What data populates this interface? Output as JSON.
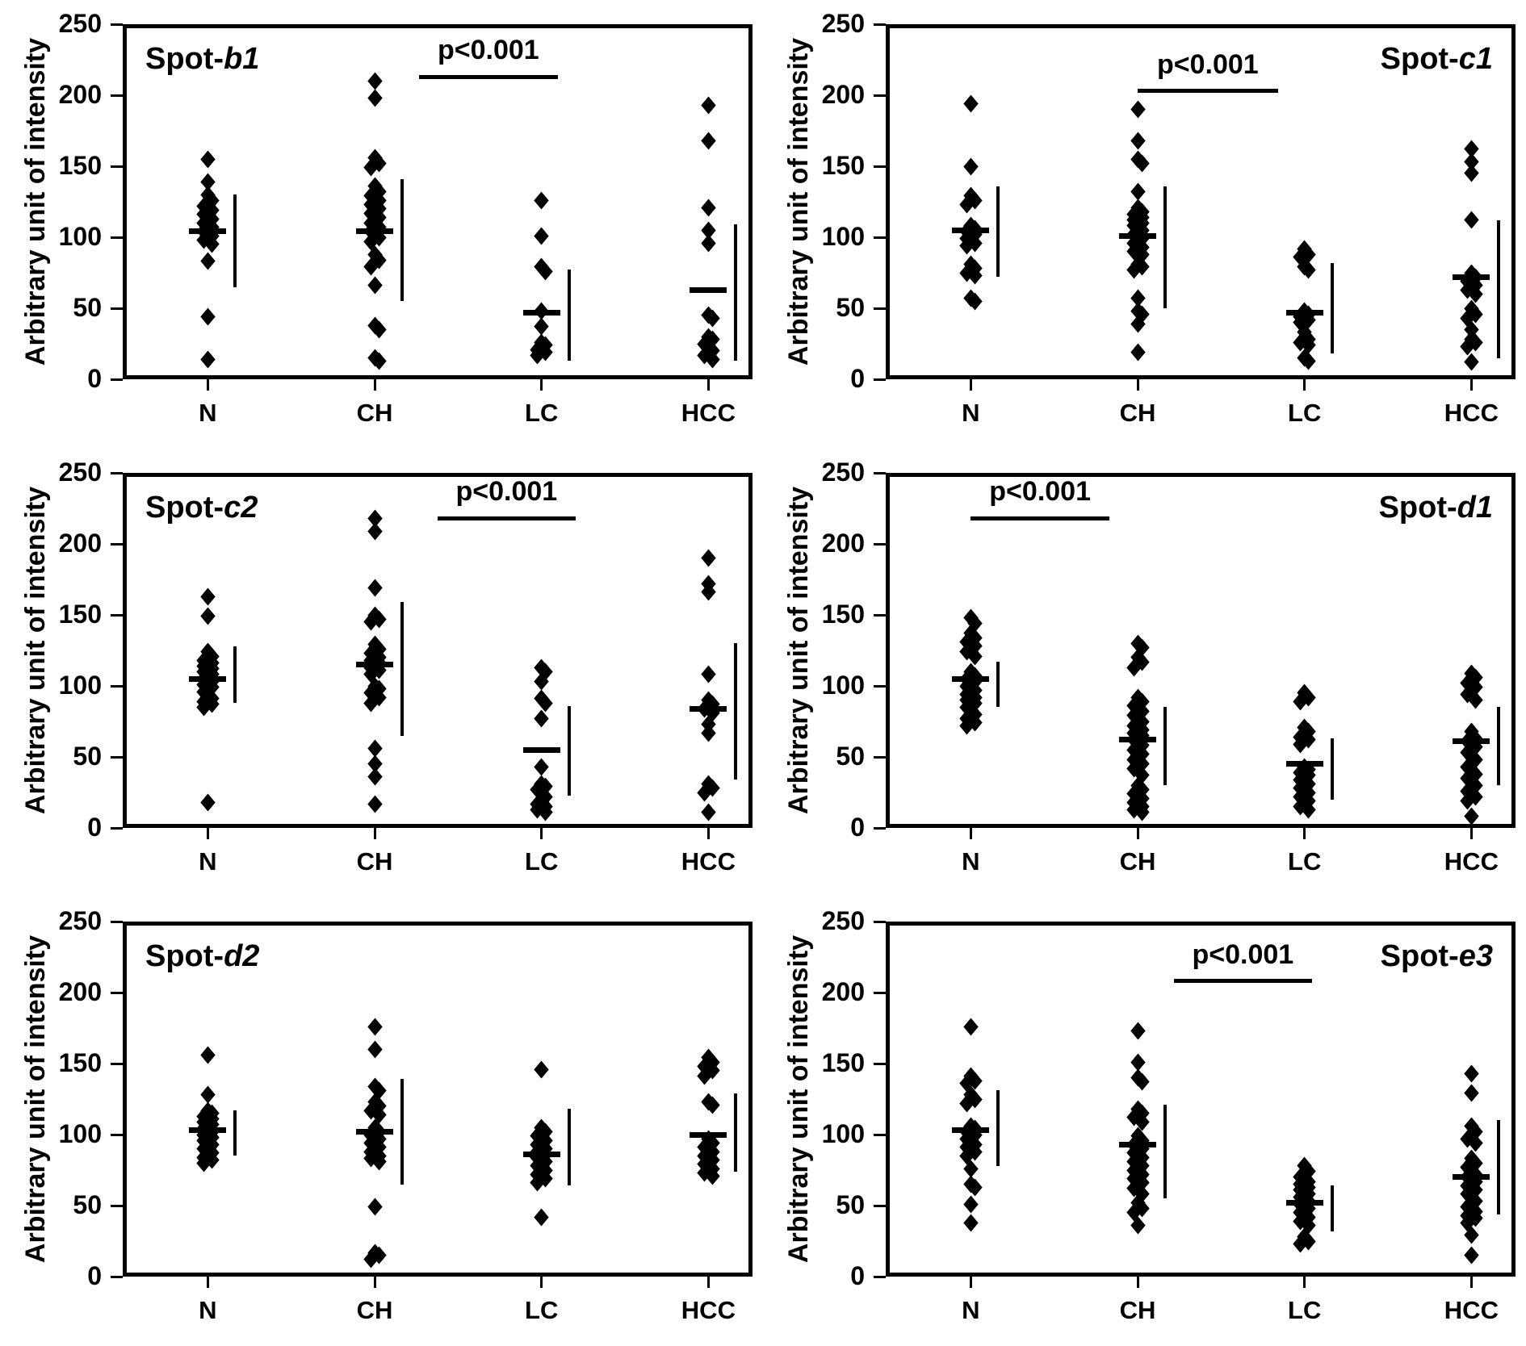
{
  "figure": {
    "background": "#ffffff",
    "marker_color": "#000000",
    "marker_shape": "diamond",
    "ylabel": "Arbitrary unit of intensity"
  },
  "chart_data": [
    {
      "type": "scatter",
      "title": {
        "prefix": "Spot-",
        "suffix": "b1",
        "position": "top-left"
      },
      "ylabel": "Arbitrary unit of intensity",
      "ylim": [
        0,
        250
      ],
      "yticks": [
        0,
        50,
        100,
        150,
        200,
        250
      ],
      "grid": false,
      "categories": [
        "N",
        "CH",
        "LC",
        "HCC"
      ],
      "series": [
        {
          "category": "N",
          "values": [
            155,
            139,
            130,
            126,
            122,
            119,
            116,
            113,
            110,
            107,
            104,
            101,
            98,
            95,
            83,
            44,
            14
          ],
          "median": 104,
          "range_line": [
            65,
            130
          ]
        },
        {
          "category": "CH",
          "values": [
            210,
            198,
            156,
            152,
            149,
            136,
            132,
            129,
            126,
            123,
            120,
            117,
            114,
            110,
            107,
            104,
            100,
            97,
            88,
            84,
            79,
            66,
            38,
            35,
            15,
            13
          ],
          "median": 104,
          "range_line": [
            55,
            141
          ]
        },
        {
          "category": "LC",
          "values": [
            126,
            101,
            79,
            76,
            48,
            37,
            26,
            24,
            21,
            19,
            17
          ],
          "median": 47,
          "range_line": [
            13,
            77
          ]
        },
        {
          "category": "HCC",
          "values": [
            193,
            168,
            121,
            105,
            96,
            45,
            43,
            30,
            28,
            25,
            20,
            17,
            14
          ],
          "median": 63,
          "range_line": [
            13,
            109
          ]
        }
      ],
      "significance": {
        "label": "p<0.001",
        "from": "CH",
        "to": "LC",
        "y": 213,
        "x_offsets": [
          55,
          20
        ]
      }
    },
    {
      "type": "scatter",
      "title": {
        "prefix": "Spot-",
        "suffix": "c1",
        "position": "top-right"
      },
      "ylabel": "Arbitrary unit of intensity",
      "ylim": [
        0,
        250
      ],
      "yticks": [
        0,
        50,
        100,
        150,
        200,
        250
      ],
      "grid": false,
      "categories": [
        "N",
        "CH",
        "LC",
        "HCC"
      ],
      "series": [
        {
          "category": "N",
          "values": [
            194,
            150,
            129,
            126,
            123,
            108,
            106,
            104,
            102,
            99,
            96,
            94,
            81,
            78,
            75,
            73,
            57,
            55
          ],
          "median": 105,
          "range_line": [
            72,
            136
          ]
        },
        {
          "category": "CH",
          "values": [
            190,
            168,
            155,
            152,
            132,
            121,
            118,
            116,
            114,
            112,
            110,
            108,
            105,
            102,
            99,
            96,
            93,
            90,
            88,
            81,
            79,
            77,
            57,
            48,
            46,
            39,
            19
          ],
          "median": 101,
          "range_line": [
            50,
            136
          ]
        },
        {
          "category": "LC",
          "values": [
            92,
            88,
            86,
            79,
            77,
            48,
            46,
            44,
            42,
            40,
            33,
            28,
            26,
            24,
            15,
            13
          ],
          "median": 47,
          "range_line": [
            18,
            82
          ]
        },
        {
          "category": "HCC",
          "values": [
            162,
            153,
            145,
            112,
            75,
            72,
            69,
            66,
            63,
            60,
            50,
            46,
            43,
            35,
            28,
            26,
            23,
            12
          ],
          "median": 72,
          "range_line": [
            15,
            112
          ]
        }
      ],
      "significance": {
        "label": "p<0.001",
        "from": "CH",
        "to": "LC",
        "y": 203,
        "x_offsets": [
          0,
          -33
        ]
      }
    },
    {
      "type": "scatter",
      "title": {
        "prefix": "Spot-",
        "suffix": "c2",
        "position": "top-left"
      },
      "ylabel": "Arbitrary unit of intensity",
      "ylim": [
        0,
        250
      ],
      "yticks": [
        0,
        50,
        100,
        150,
        200,
        250
      ],
      "grid": false,
      "categories": [
        "N",
        "CH",
        "LC",
        "HCC"
      ],
      "series": [
        {
          "category": "N",
          "values": [
            163,
            149,
            124,
            121,
            118,
            116,
            114,
            112,
            110,
            108,
            105,
            103,
            101,
            99,
            96,
            91,
            89,
            87,
            85,
            18
          ],
          "median": 105,
          "range_line": [
            88,
            128
          ]
        },
        {
          "category": "CH",
          "values": [
            218,
            209,
            169,
            150,
            147,
            145,
            129,
            126,
            123,
            120,
            118,
            116,
            113,
            111,
            108,
            100,
            98,
            95,
            92,
            88,
            56,
            45,
            36,
            17
          ],
          "median": 115,
          "range_line": [
            65,
            159
          ]
        },
        {
          "category": "LC",
          "values": [
            113,
            110,
            103,
            91,
            88,
            77,
            43,
            31,
            29,
            27,
            22,
            17,
            15,
            13,
            11
          ],
          "median": 55,
          "range_line": [
            23,
            86
          ]
        },
        {
          "category": "HCC",
          "values": [
            190,
            172,
            166,
            108,
            90,
            87,
            84,
            81,
            73,
            67,
            31,
            28,
            25,
            11
          ],
          "median": 84,
          "range_line": [
            34,
            130
          ]
        }
      ],
      "significance": {
        "label": "p<0.001",
        "from": "CH",
        "to": "LC",
        "y": 218,
        "x_offsets": [
          78,
          42
        ]
      }
    },
    {
      "type": "scatter",
      "title": {
        "prefix": "Spot-",
        "suffix": "d1",
        "position": "top-right"
      },
      "ylabel": "Arbitrary unit of intensity",
      "ylim": [
        0,
        250
      ],
      "yticks": [
        0,
        50,
        100,
        150,
        200,
        250
      ],
      "grid": false,
      "categories": [
        "N",
        "CH",
        "LC",
        "HCC"
      ],
      "series": [
        {
          "category": "N",
          "values": [
            148,
            144,
            137,
            134,
            131,
            128,
            124,
            121,
            110,
            107,
            105,
            103,
            100,
            97,
            94,
            92,
            90,
            88,
            85,
            80,
            77,
            74,
            72
          ],
          "median": 105,
          "range_line": [
            85,
            117
          ]
        },
        {
          "category": "CH",
          "values": [
            130,
            127,
            120,
            117,
            113,
            92,
            89,
            86,
            82,
            79,
            75,
            72,
            69,
            67,
            65,
            62,
            58,
            55,
            52,
            48,
            45,
            42,
            37,
            30,
            27,
            24,
            21,
            18,
            15,
            13,
            11
          ],
          "median": 62,
          "range_line": [
            30,
            85
          ]
        },
        {
          "category": "LC",
          "values": [
            95,
            92,
            89,
            71,
            68,
            64,
            62,
            59,
            43,
            41,
            39,
            37,
            34,
            31,
            28,
            25,
            22,
            19,
            15,
            13
          ],
          "median": 45,
          "range_line": [
            20,
            63
          ]
        },
        {
          "category": "HCC",
          "values": [
            109,
            106,
            102,
            99,
            94,
            90,
            68,
            63,
            61,
            57,
            53,
            48,
            43,
            38,
            35,
            30,
            26,
            22,
            19,
            8
          ],
          "median": 61,
          "range_line": [
            30,
            85
          ]
        }
      ],
      "significance": {
        "label": "p<0.001",
        "from": "N",
        "to": "CH",
        "y": 218,
        "x_offsets": [
          0,
          -35
        ]
      }
    },
    {
      "type": "scatter",
      "title": {
        "prefix": "Spot-",
        "suffix": "d2",
        "position": "top-left"
      },
      "ylabel": "Arbitrary unit of intensity",
      "ylim": [
        0,
        250
      ],
      "yticks": [
        0,
        50,
        100,
        150,
        200,
        250
      ],
      "grid": false,
      "categories": [
        "N",
        "CH",
        "LC",
        "HCC"
      ],
      "series": [
        {
          "category": "N",
          "values": [
            156,
            128,
            117,
            115,
            113,
            111,
            109,
            107,
            104,
            102,
            100,
            98,
            96,
            93,
            90,
            87,
            84,
            82,
            80
          ],
          "median": 103,
          "range_line": [
            85,
            117
          ]
        },
        {
          "category": "CH",
          "values": [
            176,
            160,
            134,
            131,
            123,
            120,
            117,
            114,
            105,
            102,
            100,
            97,
            94,
            91,
            88,
            85,
            83,
            81,
            49,
            17,
            15,
            12
          ],
          "median": 102,
          "range_line": [
            65,
            139
          ]
        },
        {
          "category": "LC",
          "values": [
            146,
            105,
            102,
            99,
            96,
            93,
            90,
            88,
            86,
            84,
            81,
            78,
            75,
            72,
            69,
            66,
            42
          ],
          "median": 86,
          "range_line": [
            64,
            118
          ]
        },
        {
          "category": "HCC",
          "values": [
            154,
            151,
            148,
            145,
            141,
            123,
            121,
            97,
            94,
            91,
            88,
            85,
            82,
            79,
            76,
            73,
            71
          ],
          "median": 100,
          "range_line": [
            74,
            129
          ]
        }
      ],
      "significance": null
    },
    {
      "type": "scatter",
      "title": {
        "prefix": "Spot-",
        "suffix": "e3",
        "position": "top-right"
      },
      "ylabel": "Arbitrary unit of intensity",
      "ylim": [
        0,
        250
      ],
      "yticks": [
        0,
        50,
        100,
        150,
        200,
        250
      ],
      "grid": false,
      "categories": [
        "N",
        "CH",
        "LC",
        "HCC"
      ],
      "series": [
        {
          "category": "N",
          "values": [
            176,
            141,
            138,
            136,
            128,
            125,
            122,
            106,
            104,
            102,
            100,
            97,
            93,
            91,
            88,
            85,
            76,
            65,
            63,
            51,
            38
          ],
          "median": 103,
          "range_line": [
            78,
            131
          ]
        },
        {
          "category": "CH",
          "values": [
            173,
            151,
            140,
            137,
            118,
            115,
            112,
            109,
            99,
            96,
            93,
            90,
            87,
            84,
            81,
            78,
            75,
            72,
            69,
            66,
            62,
            58,
            52,
            48,
            45,
            36
          ],
          "median": 93,
          "range_line": [
            55,
            121
          ]
        },
        {
          "category": "LC",
          "values": [
            78,
            74,
            70,
            67,
            65,
            63,
            61,
            58,
            56,
            53,
            51,
            48,
            45,
            42,
            39,
            36,
            28,
            25,
            23
          ],
          "median": 52,
          "range_line": [
            32,
            64
          ]
        },
        {
          "category": "HCC",
          "values": [
            143,
            129,
            106,
            102,
            97,
            94,
            83,
            80,
            77,
            72,
            70,
            67,
            64,
            61,
            58,
            53,
            49,
            46,
            43,
            41,
            38,
            29,
            15
          ],
          "median": 70,
          "range_line": [
            44,
            110
          ]
        }
      ],
      "significance": {
        "label": "p<0.001",
        "from": "CH",
        "to": "LC",
        "y": 208,
        "x_offsets": [
          45,
          9
        ]
      }
    }
  ]
}
